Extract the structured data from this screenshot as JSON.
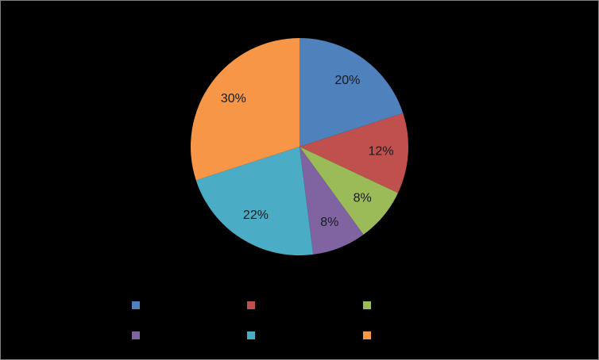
{
  "chart_data": {
    "type": "pie",
    "categories": [
      null,
      null,
      null,
      null,
      null,
      null
    ],
    "values": [
      20,
      12,
      8,
      8,
      22,
      30
    ],
    "value_labels": [
      "20%",
      "12%",
      "8%",
      "8%",
      "22%",
      "30%"
    ],
    "colors": [
      "#4f81bd",
      "#c0504d",
      "#9bbb59",
      "#8064a2",
      "#4bacc6",
      "#f79646"
    ],
    "legend": "bottom"
  }
}
